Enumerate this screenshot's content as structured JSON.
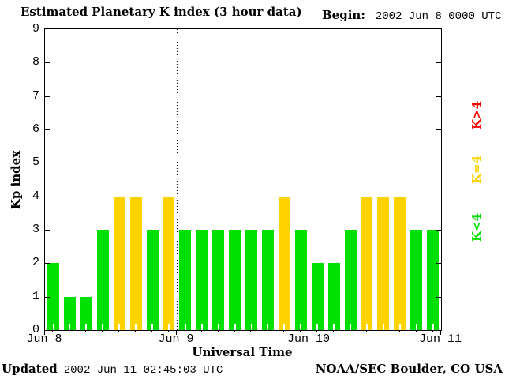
{
  "title": "Estimated Planetary K index (3 hour data)",
  "begin": {
    "label": "Begin:",
    "value": "2002 Jun 8 0000 UTC"
  },
  "footer": {
    "updated_label": "Updated",
    "updated_value": "2002 Jun 11 02:45:03 UTC",
    "credit": "NOAA/SEC Boulder, CO USA"
  },
  "chart_data": {
    "type": "bar",
    "title": "Estimated Planetary K index (3 hour data)",
    "xlabel": "Universal Time",
    "ylabel": "Kp index",
    "ylim": [
      0,
      9
    ],
    "yticks": [
      0,
      1,
      2,
      3,
      4,
      5,
      6,
      7,
      8,
      9
    ],
    "hours_per_bar": 3,
    "bars_per_day": 8,
    "x_day_labels": [
      "Jun 8",
      "Jun 9",
      "Jun 10",
      "Jun 11"
    ],
    "values": [
      2,
      1,
      1,
      3,
      4,
      4,
      3,
      4,
      3,
      3,
      3,
      3,
      3,
      3,
      4,
      3,
      2,
      2,
      3,
      4,
      4,
      4,
      3,
      3
    ],
    "values_by_day": {
      "Jun 8": [
        2,
        1,
        1,
        3,
        4,
        4,
        3,
        4
      ],
      "Jun 9": [
        3,
        3,
        3,
        3,
        3,
        3,
        4,
        3
      ],
      "Jun 10": [
        2,
        2,
        3,
        4,
        4,
        4,
        3,
        3
      ]
    },
    "colors": {
      "k_lt_4": "#00e000",
      "k_eq_4": "#ffd300",
      "k_gt_4": "#ff0000"
    },
    "legend": [
      {
        "label": "K>4",
        "color": "#ff0000"
      },
      {
        "label": "K=4",
        "color": "#ffd300"
      },
      {
        "label": "K<4",
        "color": "#00e000"
      }
    ],
    "grid": "dotted vertical lines at day boundaries",
    "legend_position": "right, rotated 90deg"
  }
}
